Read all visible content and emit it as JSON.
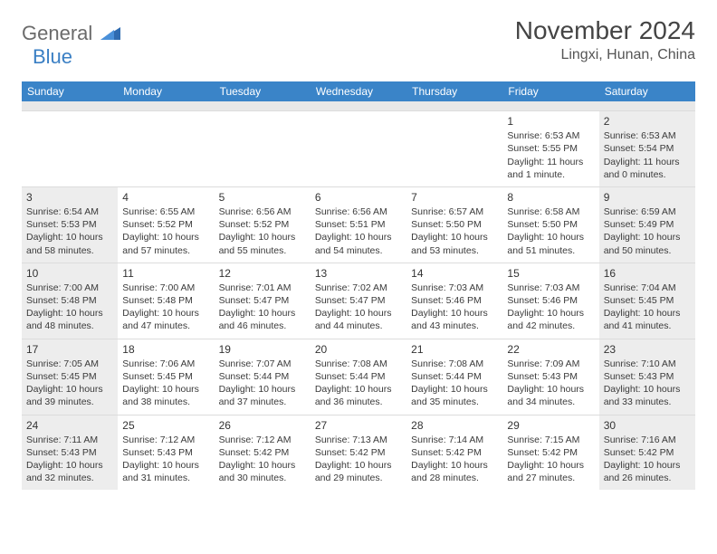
{
  "brand": {
    "part1": "General",
    "part2": "Blue"
  },
  "title": "November 2024",
  "location": "Lingxi, Hunan, China",
  "colors": {
    "header_bg": "#3a84c8",
    "header_text": "#ffffff",
    "shaded_bg": "#ededed",
    "border": "#dcdcdc",
    "body_text": "#3a3a3a",
    "logo_gray": "#6b6b6b",
    "logo_blue": "#3a7fc4"
  },
  "weekdays": [
    "Sunday",
    "Monday",
    "Tuesday",
    "Wednesday",
    "Thursday",
    "Friday",
    "Saturday"
  ],
  "weeks": [
    [
      {
        "blank": true
      },
      {
        "blank": true
      },
      {
        "blank": true
      },
      {
        "blank": true
      },
      {
        "blank": true
      },
      {
        "day": "1",
        "sunrise": "Sunrise: 6:53 AM",
        "sunset": "Sunset: 5:55 PM",
        "daylight": "Daylight: 11 hours and 1 minute."
      },
      {
        "day": "2",
        "sunrise": "Sunrise: 6:53 AM",
        "sunset": "Sunset: 5:54 PM",
        "daylight": "Daylight: 11 hours and 0 minutes.",
        "shaded": true
      }
    ],
    [
      {
        "day": "3",
        "sunrise": "Sunrise: 6:54 AM",
        "sunset": "Sunset: 5:53 PM",
        "daylight": "Daylight: 10 hours and 58 minutes.",
        "shaded": true
      },
      {
        "day": "4",
        "sunrise": "Sunrise: 6:55 AM",
        "sunset": "Sunset: 5:52 PM",
        "daylight": "Daylight: 10 hours and 57 minutes."
      },
      {
        "day": "5",
        "sunrise": "Sunrise: 6:56 AM",
        "sunset": "Sunset: 5:52 PM",
        "daylight": "Daylight: 10 hours and 55 minutes."
      },
      {
        "day": "6",
        "sunrise": "Sunrise: 6:56 AM",
        "sunset": "Sunset: 5:51 PM",
        "daylight": "Daylight: 10 hours and 54 minutes."
      },
      {
        "day": "7",
        "sunrise": "Sunrise: 6:57 AM",
        "sunset": "Sunset: 5:50 PM",
        "daylight": "Daylight: 10 hours and 53 minutes."
      },
      {
        "day": "8",
        "sunrise": "Sunrise: 6:58 AM",
        "sunset": "Sunset: 5:50 PM",
        "daylight": "Daylight: 10 hours and 51 minutes."
      },
      {
        "day": "9",
        "sunrise": "Sunrise: 6:59 AM",
        "sunset": "Sunset: 5:49 PM",
        "daylight": "Daylight: 10 hours and 50 minutes.",
        "shaded": true
      }
    ],
    [
      {
        "day": "10",
        "sunrise": "Sunrise: 7:00 AM",
        "sunset": "Sunset: 5:48 PM",
        "daylight": "Daylight: 10 hours and 48 minutes.",
        "shaded": true
      },
      {
        "day": "11",
        "sunrise": "Sunrise: 7:00 AM",
        "sunset": "Sunset: 5:48 PM",
        "daylight": "Daylight: 10 hours and 47 minutes."
      },
      {
        "day": "12",
        "sunrise": "Sunrise: 7:01 AM",
        "sunset": "Sunset: 5:47 PM",
        "daylight": "Daylight: 10 hours and 46 minutes."
      },
      {
        "day": "13",
        "sunrise": "Sunrise: 7:02 AM",
        "sunset": "Sunset: 5:47 PM",
        "daylight": "Daylight: 10 hours and 44 minutes."
      },
      {
        "day": "14",
        "sunrise": "Sunrise: 7:03 AM",
        "sunset": "Sunset: 5:46 PM",
        "daylight": "Daylight: 10 hours and 43 minutes."
      },
      {
        "day": "15",
        "sunrise": "Sunrise: 7:03 AM",
        "sunset": "Sunset: 5:46 PM",
        "daylight": "Daylight: 10 hours and 42 minutes."
      },
      {
        "day": "16",
        "sunrise": "Sunrise: 7:04 AM",
        "sunset": "Sunset: 5:45 PM",
        "daylight": "Daylight: 10 hours and 41 minutes.",
        "shaded": true
      }
    ],
    [
      {
        "day": "17",
        "sunrise": "Sunrise: 7:05 AM",
        "sunset": "Sunset: 5:45 PM",
        "daylight": "Daylight: 10 hours and 39 minutes.",
        "shaded": true
      },
      {
        "day": "18",
        "sunrise": "Sunrise: 7:06 AM",
        "sunset": "Sunset: 5:45 PM",
        "daylight": "Daylight: 10 hours and 38 minutes."
      },
      {
        "day": "19",
        "sunrise": "Sunrise: 7:07 AM",
        "sunset": "Sunset: 5:44 PM",
        "daylight": "Daylight: 10 hours and 37 minutes."
      },
      {
        "day": "20",
        "sunrise": "Sunrise: 7:08 AM",
        "sunset": "Sunset: 5:44 PM",
        "daylight": "Daylight: 10 hours and 36 minutes."
      },
      {
        "day": "21",
        "sunrise": "Sunrise: 7:08 AM",
        "sunset": "Sunset: 5:44 PM",
        "daylight": "Daylight: 10 hours and 35 minutes."
      },
      {
        "day": "22",
        "sunrise": "Sunrise: 7:09 AM",
        "sunset": "Sunset: 5:43 PM",
        "daylight": "Daylight: 10 hours and 34 minutes."
      },
      {
        "day": "23",
        "sunrise": "Sunrise: 7:10 AM",
        "sunset": "Sunset: 5:43 PM",
        "daylight": "Daylight: 10 hours and 33 minutes.",
        "shaded": true
      }
    ],
    [
      {
        "day": "24",
        "sunrise": "Sunrise: 7:11 AM",
        "sunset": "Sunset: 5:43 PM",
        "daylight": "Daylight: 10 hours and 32 minutes.",
        "shaded": true
      },
      {
        "day": "25",
        "sunrise": "Sunrise: 7:12 AM",
        "sunset": "Sunset: 5:43 PM",
        "daylight": "Daylight: 10 hours and 31 minutes."
      },
      {
        "day": "26",
        "sunrise": "Sunrise: 7:12 AM",
        "sunset": "Sunset: 5:42 PM",
        "daylight": "Daylight: 10 hours and 30 minutes."
      },
      {
        "day": "27",
        "sunrise": "Sunrise: 7:13 AM",
        "sunset": "Sunset: 5:42 PM",
        "daylight": "Daylight: 10 hours and 29 minutes."
      },
      {
        "day": "28",
        "sunrise": "Sunrise: 7:14 AM",
        "sunset": "Sunset: 5:42 PM",
        "daylight": "Daylight: 10 hours and 28 minutes."
      },
      {
        "day": "29",
        "sunrise": "Sunrise: 7:15 AM",
        "sunset": "Sunset: 5:42 PM",
        "daylight": "Daylight: 10 hours and 27 minutes."
      },
      {
        "day": "30",
        "sunrise": "Sunrise: 7:16 AM",
        "sunset": "Sunset: 5:42 PM",
        "daylight": "Daylight: 10 hours and 26 minutes.",
        "shaded": true
      }
    ]
  ]
}
